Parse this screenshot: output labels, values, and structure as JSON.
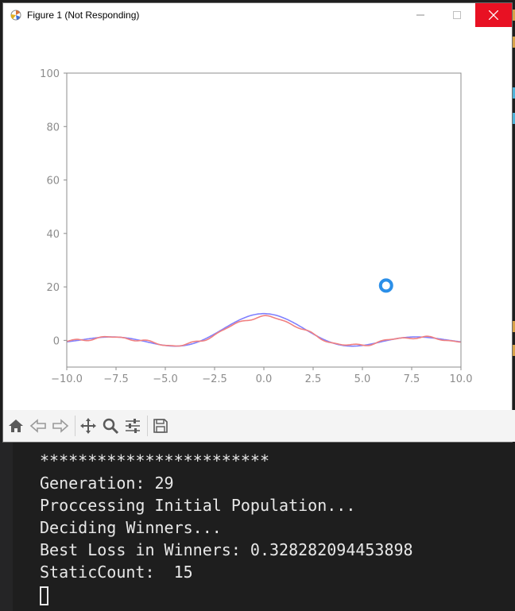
{
  "window": {
    "title": "Figure 1 (Not Responding)",
    "icon": "matplotlib-figure-icon"
  },
  "colors": {
    "series_blue": "#8080ff",
    "series_red": "#f08080",
    "marker": "#2b8fe8",
    "close_button": "#e81123",
    "terminal_bg": "#1e1e1e",
    "terminal_text": "#e8e8e8"
  },
  "chart_data": {
    "type": "line",
    "xlim": [
      -10,
      10
    ],
    "ylim": [
      -10,
      100
    ],
    "x_ticks": [
      "−10.0",
      "−7.5",
      "−5.0",
      "−2.5",
      "0.0",
      "2.5",
      "5.0",
      "7.5",
      "10.0"
    ],
    "x_tick_values": [
      -10,
      -7.5,
      -5,
      -2.5,
      0,
      2.5,
      5,
      7.5,
      10
    ],
    "y_ticks": [
      "0",
      "20",
      "40",
      "60",
      "80",
      "100"
    ],
    "y_tick_values": [
      0,
      20,
      40,
      60,
      80,
      100
    ],
    "grid": false,
    "series": [
      {
        "color": "#8080ff",
        "function": "10*sin(x)/x (approx. target)"
      },
      {
        "color": "#f08080",
        "function": "fitted approximation"
      }
    ],
    "point": {
      "x": 6.2,
      "y": 20.5
    }
  },
  "toolbar": {
    "buttons": [
      "home-icon",
      "back-icon",
      "forward-icon",
      "pan-icon",
      "zoom-icon",
      "configure-subplots-icon",
      "save-icon"
    ]
  },
  "terminal": {
    "lines": [
      "************************",
      "Generation: 29",
      "Proccessing Initial Population...",
      "Deciding Winners...",
      "Best Loss in Winners: 0.328282094453898",
      "StaticCount:  15"
    ]
  }
}
